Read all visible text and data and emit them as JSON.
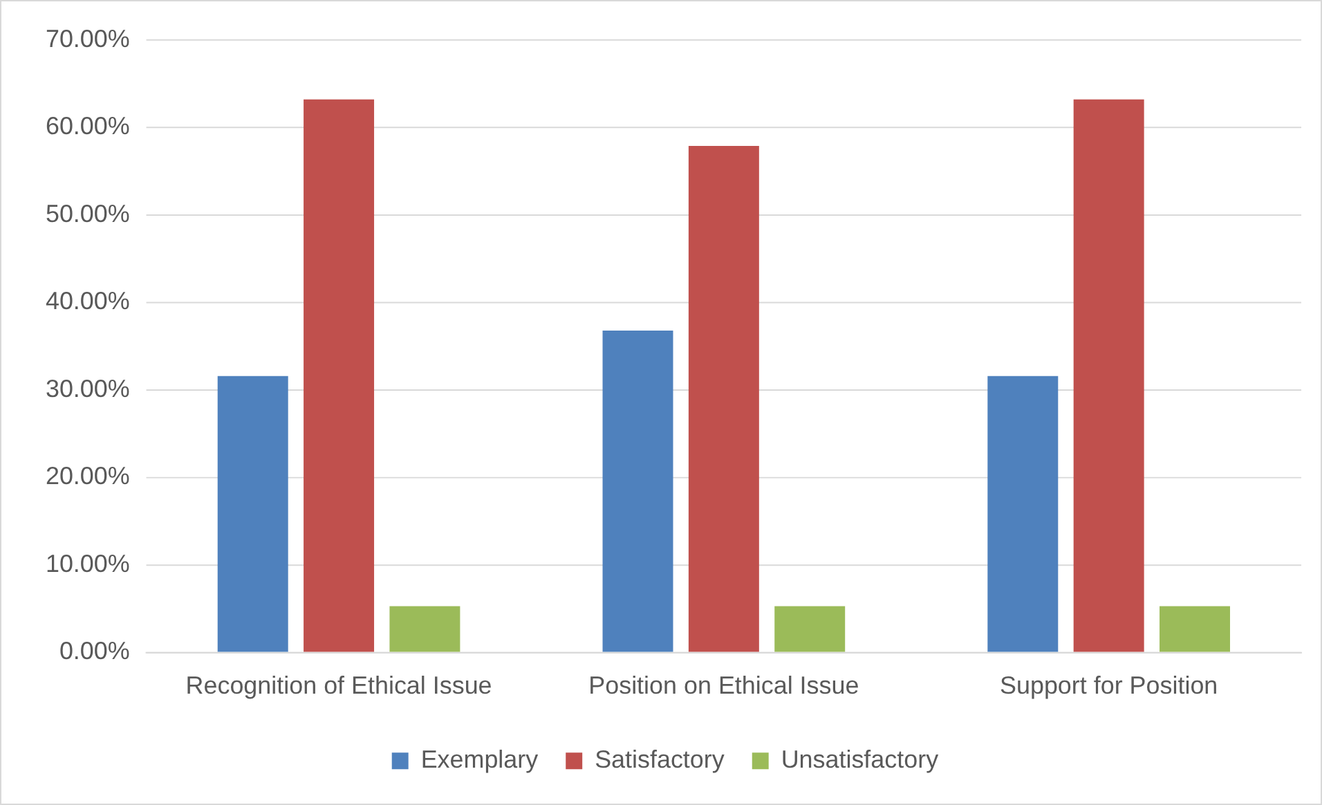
{
  "chart_data": {
    "type": "bar",
    "categories": [
      "Recognition of Ethical Issue",
      "Position on Ethical Issue",
      "Support for Position"
    ],
    "series": [
      {
        "name": "Exemplary",
        "color": "#4f81bd",
        "values": [
          31.6,
          36.8,
          31.6
        ]
      },
      {
        "name": "Satisfactory",
        "color": "#c0504d",
        "values": [
          63.2,
          57.9,
          63.2
        ]
      },
      {
        "name": "Unsatisfactory",
        "color": "#9bbb59",
        "values": [
          5.3,
          5.3,
          5.3
        ]
      }
    ],
    "ylim": [
      0,
      70
    ],
    "yticks": [
      {
        "value": 0,
        "label": "0.00%"
      },
      {
        "value": 10,
        "label": "10.00%"
      },
      {
        "value": 20,
        "label": "20.00%"
      },
      {
        "value": 30,
        "label": "30.00%"
      },
      {
        "value": 40,
        "label": "40.00%"
      },
      {
        "value": 50,
        "label": "50.00%"
      },
      {
        "value": 60,
        "label": "60.00%"
      },
      {
        "value": 70,
        "label": "70.00%"
      }
    ],
    "grid": "y",
    "legend": "bottom"
  }
}
